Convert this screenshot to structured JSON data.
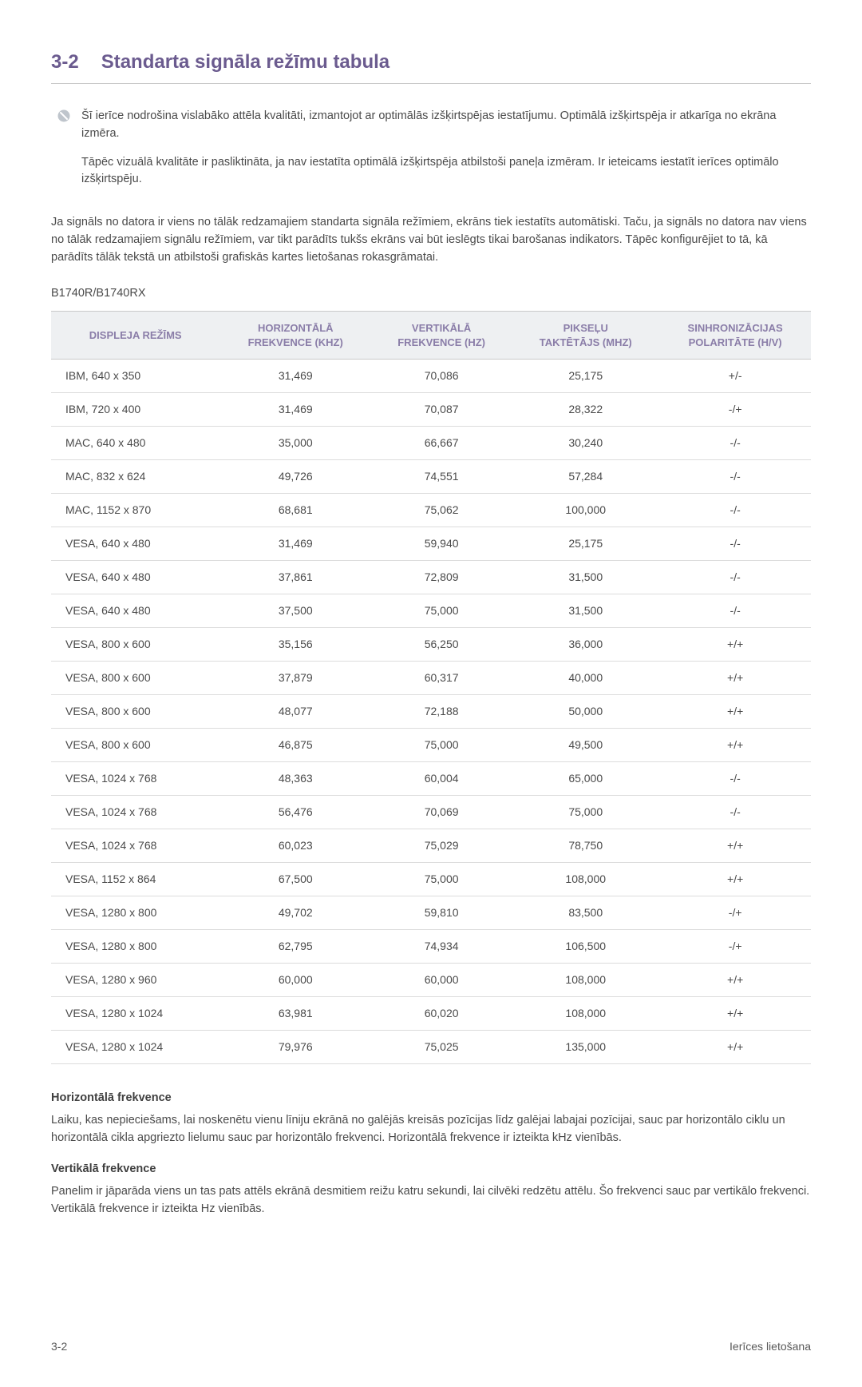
{
  "heading": {
    "number": "3-2",
    "title": "Standarta signāla režīmu tabula"
  },
  "note": {
    "p1": "Šī ierīce nodrošina vislabāko attēla kvalitāti, izmantojot ar optimālās izšķirtspējas iestatījumu. Optimālā izšķirtspēja ir atkarīga no ekrāna izmēra.",
    "p2": "Tāpēc vizuālā kvalitāte ir pasliktināta, ja nav iestatīta optimālā izšķirtspēja atbilstoši paneļa izmēram. Ir ieteicams iestatīt ierīces optimālo izšķirtspēju."
  },
  "intro": "Ja signāls no datora ir viens no tālāk redzamajiem standarta signāla režīmiem, ekrāns tiek iestatīts automātiski. Taču, ja signāls no datora nav viens no tālāk redzamajiem signālu režīmiem, var tikt parādīts tukšs ekrāns vai būt ieslēgts tikai barošanas indikators. Tāpēc konfigurējiet to tā, kā parādīts tālāk tekstā un atbilstoši grafiskās kartes lietošanas rokasgrāmatai.",
  "model": "B1740R/B1740RX",
  "table": {
    "headers": {
      "c1": "DISPLEJA REŽĪMS",
      "c2a": "HORIZONTĀLĀ",
      "c2b": "FREKVENCE (KHZ)",
      "c3a": "VERTIKĀLĀ",
      "c3b": "FREKVENCE (HZ)",
      "c4a": "PIKSEĻU",
      "c4b": "TAKTĒTĀJS (MHZ)",
      "c5a": "SINHRONIZĀCIJAS",
      "c5b": "POLARITĀTE (H/V)"
    },
    "rows": [
      [
        "IBM, 640 x 350",
        "31,469",
        "70,086",
        "25,175",
        "+/-"
      ],
      [
        "IBM, 720 x 400",
        "31,469",
        "70,087",
        "28,322",
        "-/+"
      ],
      [
        "MAC, 640 x 480",
        "35,000",
        "66,667",
        "30,240",
        "-/-"
      ],
      [
        "MAC, 832 x 624",
        "49,726",
        "74,551",
        "57,284",
        "-/-"
      ],
      [
        "MAC, 1152 x 870",
        "68,681",
        "75,062",
        "100,000",
        "-/-"
      ],
      [
        "VESA, 640 x 480",
        "31,469",
        "59,940",
        "25,175",
        "-/-"
      ],
      [
        "VESA, 640 x 480",
        "37,861",
        "72,809",
        "31,500",
        "-/-"
      ],
      [
        "VESA, 640 x 480",
        "37,500",
        "75,000",
        "31,500",
        "-/-"
      ],
      [
        "VESA, 800 x 600",
        "35,156",
        "56,250",
        "36,000",
        "+/+"
      ],
      [
        "VESA, 800 x 600",
        "37,879",
        "60,317",
        "40,000",
        "+/+"
      ],
      [
        "VESA, 800 x 600",
        "48,077",
        "72,188",
        "50,000",
        "+/+"
      ],
      [
        "VESA, 800 x 600",
        "46,875",
        "75,000",
        "49,500",
        "+/+"
      ],
      [
        "VESA, 1024 x 768",
        "48,363",
        "60,004",
        "65,000",
        "-/-"
      ],
      [
        "VESA, 1024 x 768",
        "56,476",
        "70,069",
        "75,000",
        "-/-"
      ],
      [
        "VESA, 1024 x 768",
        "60,023",
        "75,029",
        "78,750",
        "+/+"
      ],
      [
        "VESA, 1152 x 864",
        "67,500",
        "75,000",
        "108,000",
        "+/+"
      ],
      [
        "VESA, 1280 x 800",
        "49,702",
        "59,810",
        "83,500",
        "-/+"
      ],
      [
        "VESA, 1280 x 800",
        "62,795",
        "74,934",
        "106,500",
        "-/+"
      ],
      [
        "VESA, 1280 x 960",
        "60,000",
        "60,000",
        "108,000",
        "+/+"
      ],
      [
        "VESA, 1280 x 1024",
        "63,981",
        "60,020",
        "108,000",
        "+/+"
      ],
      [
        "VESA, 1280 x 1024",
        "79,976",
        "75,025",
        "135,000",
        "+/+"
      ]
    ]
  },
  "defs": {
    "h_title": "Horizontālā frekvence",
    "h_body": "Laiku, kas nepieciešams, lai noskenētu vienu līniju ekrānā no galējās kreisās pozīcijas līdz galējai labajai pozīcijai, sauc par horizontālo ciklu un horizontālā cikla apgriezto lielumu sauc par horizontālo frekvenci. Horizontālā frekvence ir izteikta kHz vienībās.",
    "v_title": "Vertikālā frekvence",
    "v_body": "Panelim ir jāparāda viens un tas pats attēls ekrānā desmitiem reižu katru sekundi, lai cilvēki redzētu attēlu. Šo frekvenci sauc par vertikālo frekvenci. Vertikālā frekvence ir izteikta Hz vienībās."
  },
  "footer": {
    "left": "3-2",
    "right": "Ierīces lietošana"
  }
}
